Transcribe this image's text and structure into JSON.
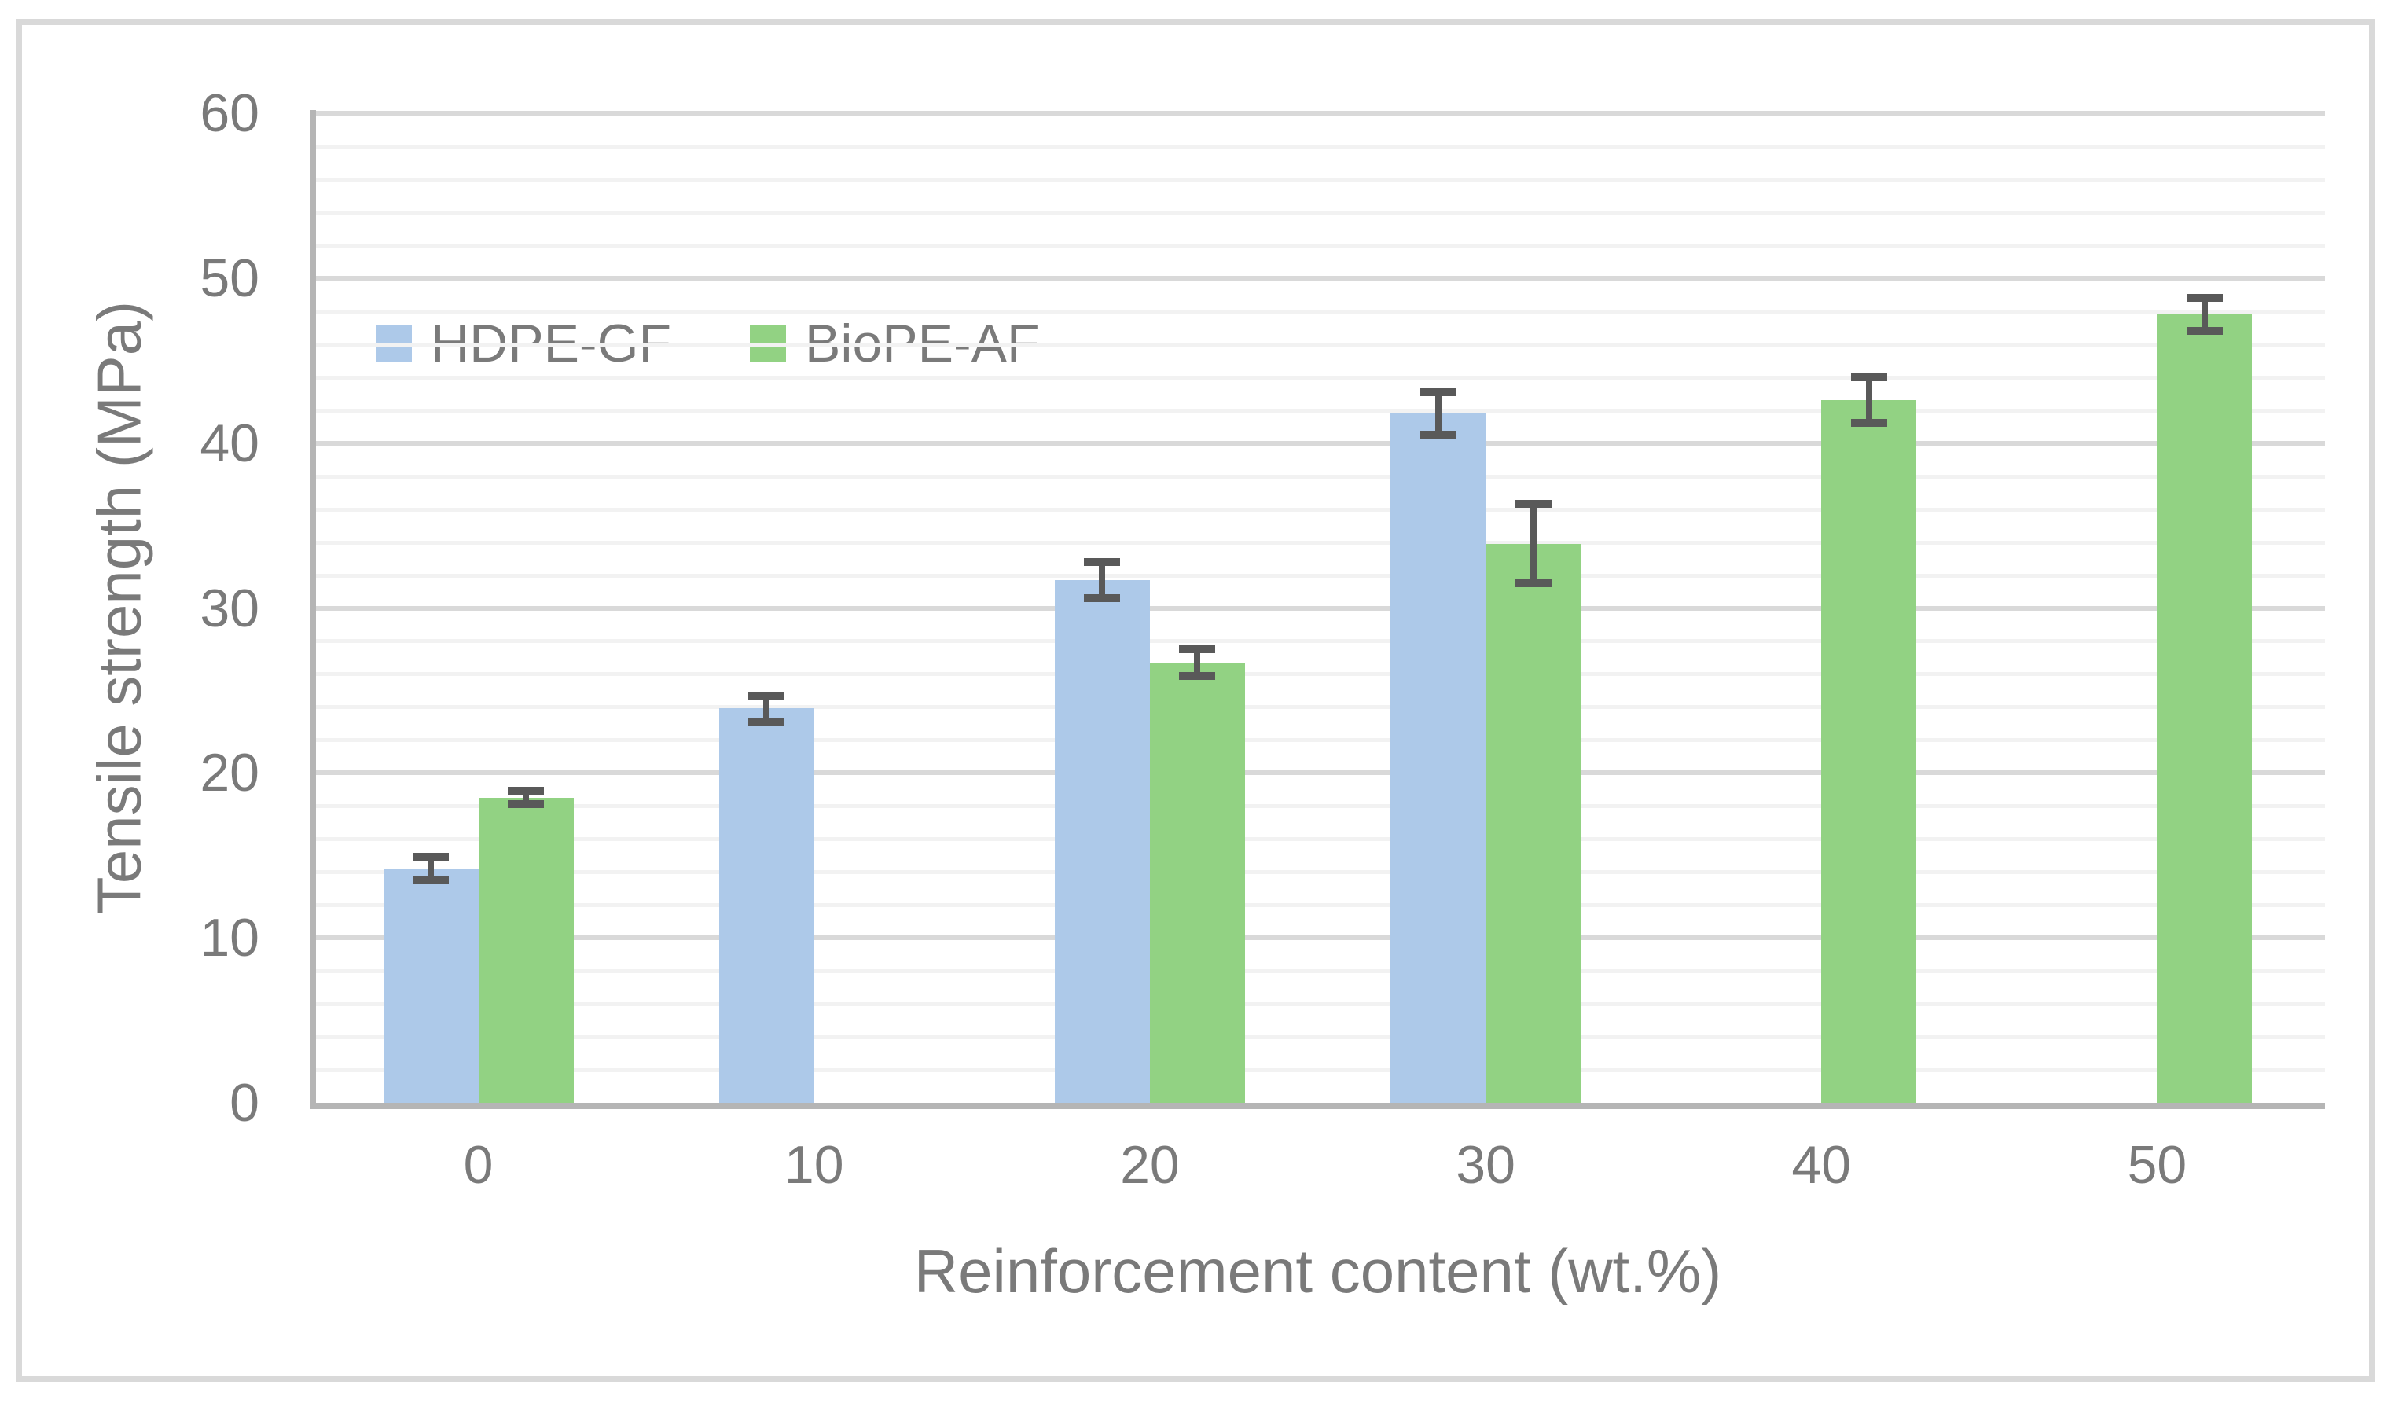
{
  "chart_data": {
    "type": "bar",
    "title": "",
    "xlabel": "Reinforcement content (wt.%)",
    "ylabel": "Tensile strength (MPa)",
    "categories": [
      "0",
      "10",
      "20",
      "30",
      "40",
      "50"
    ],
    "series": [
      {
        "name": "HDPE-GF",
        "color": "#ADC9E9",
        "values": [
          14.2,
          23.9,
          31.7,
          41.8,
          null,
          null
        ],
        "error_bars": [
          0.7,
          0.8,
          1.1,
          1.3,
          null,
          null
        ]
      },
      {
        "name": "BioPE-AF",
        "color": "#92D283",
        "values": [
          18.5,
          null,
          26.7,
          33.9,
          42.6,
          47.8
        ],
        "error_bars": [
          0.4,
          null,
          0.8,
          2.4,
          1.4,
          1.0
        ]
      }
    ],
    "ylim": [
      0,
      60
    ],
    "ytick_step": 10,
    "yminor_step": 2,
    "legend_position": "top-left-inside",
    "grid": {
      "major_color": "#D9D9D9",
      "minor_color": "#F2F2F2"
    },
    "error_bar_color": "#595959",
    "axis_line_color": "#B5B5B5",
    "text_color": "#7A7A7A",
    "frame_border_color": "#D9D9D9",
    "series_fill_blue": "#ADC9E9",
    "series_fill_green": "#92D283"
  }
}
